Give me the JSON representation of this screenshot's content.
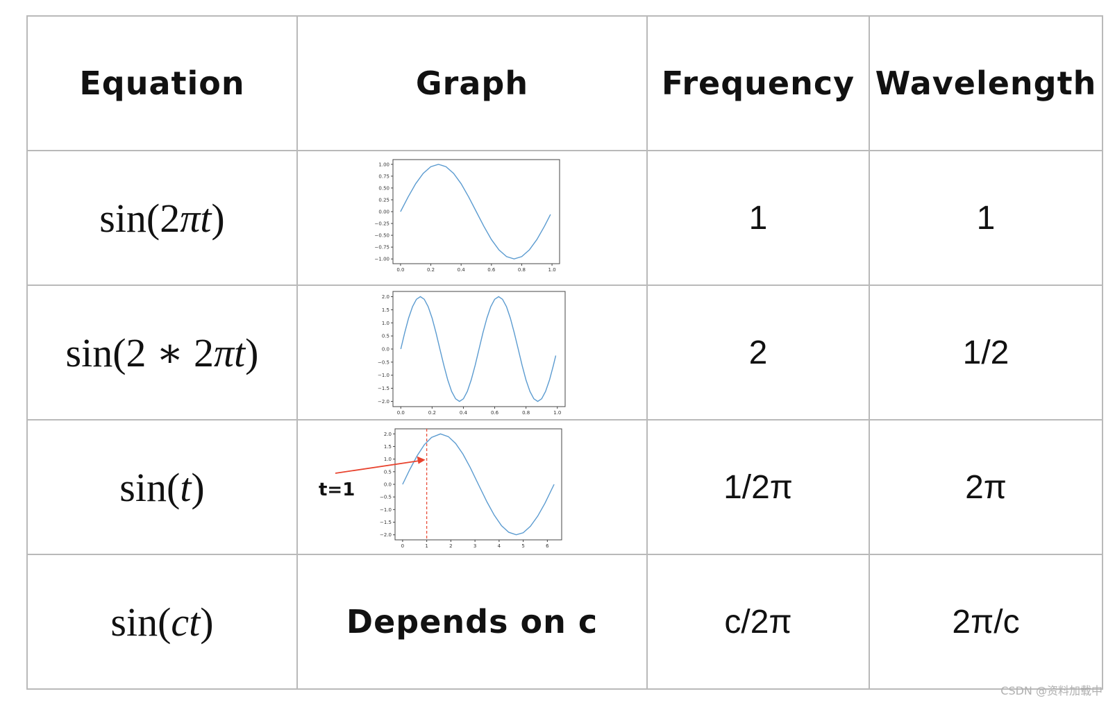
{
  "headers": {
    "equation": "Equation",
    "graph": "Graph",
    "frequency": "Frequency",
    "wavelength": "Wavelength"
  },
  "rows": [
    {
      "eq_pre": "sin(2",
      "eq_mid": "πt",
      "eq_post": ")",
      "frequency": "1",
      "wavelength": "1"
    },
    {
      "eq_pre": "sin(2 ∗ 2",
      "eq_mid": "πt",
      "eq_post": ")",
      "frequency": "2",
      "wavelength": "1/2"
    },
    {
      "eq_pre": "sin(",
      "eq_mid": "t",
      "eq_post": ")",
      "frequency": "1/2π",
      "wavelength": "2π"
    },
    {
      "eq_pre": "sin(",
      "eq_mid": "ct",
      "eq_post": ")",
      "frequency": "c/2π",
      "wavelength": "2π/c",
      "graph_text": "Depends on c"
    }
  ],
  "annotation": {
    "label": "t=1",
    "arrow_color": "#e8432e",
    "marker_x": 1
  },
  "line_color": "#5b9bd0",
  "watermark": "CSDN @资料加载中",
  "chart_data": [
    {
      "type": "line",
      "title": "",
      "series": [
        {
          "x": [
            0,
            0.05,
            0.1,
            0.15,
            0.2,
            0.25,
            0.3,
            0.35,
            0.4,
            0.45,
            0.5,
            0.55,
            0.6,
            0.65,
            0.7,
            0.75,
            0.8,
            0.85,
            0.9,
            0.95,
            0.99
          ],
          "y": [
            0,
            0.31,
            0.59,
            0.81,
            0.95,
            1.0,
            0.95,
            0.81,
            0.59,
            0.31,
            0,
            -0.31,
            -0.59,
            -0.81,
            -0.95,
            -1.0,
            -0.95,
            -0.81,
            -0.59,
            -0.31,
            -0.06
          ]
        }
      ],
      "xlim": [
        0,
        1.0
      ],
      "ylim": [
        -1.0,
        1.0
      ],
      "xticks": [
        "0.0",
        "0.2",
        "0.4",
        "0.6",
        "0.8",
        "1.0"
      ],
      "yticks": [
        "1.00",
        "0.75",
        "0.50",
        "0.25",
        "0.00",
        "−0.25",
        "−0.50",
        "−0.75",
        "−1.00"
      ],
      "grid": false
    },
    {
      "type": "line",
      "title": "",
      "series": [
        {
          "x": [
            0,
            0.025,
            0.05,
            0.075,
            0.1,
            0.125,
            0.15,
            0.175,
            0.2,
            0.225,
            0.25,
            0.275,
            0.3,
            0.325,
            0.35,
            0.375,
            0.4,
            0.425,
            0.45,
            0.475,
            0.5,
            0.525,
            0.55,
            0.575,
            0.6,
            0.625,
            0.65,
            0.675,
            0.7,
            0.725,
            0.75,
            0.775,
            0.8,
            0.825,
            0.85,
            0.875,
            0.9,
            0.925,
            0.95,
            0.975,
            0.99
          ],
          "y": [
            0,
            0.62,
            1.18,
            1.62,
            1.9,
            2.0,
            1.9,
            1.62,
            1.18,
            0.62,
            0,
            -0.62,
            -1.18,
            -1.62,
            -1.9,
            -2.0,
            -1.9,
            -1.62,
            -1.18,
            -0.62,
            0,
            0.62,
            1.18,
            1.62,
            1.9,
            2.0,
            1.9,
            1.62,
            1.18,
            0.62,
            0,
            -0.62,
            -1.18,
            -1.62,
            -1.9,
            -2.0,
            -1.9,
            -1.62,
            -1.18,
            -0.62,
            -0.25
          ]
        }
      ],
      "xlim": [
        0,
        1.0
      ],
      "ylim": [
        -2.0,
        2.0
      ],
      "xticks": [
        "0.0",
        "0.2",
        "0.4",
        "0.6",
        "0.8",
        "1.0"
      ],
      "yticks": [
        "2.0",
        "1.5",
        "1.0",
        "0.5",
        "0.0",
        "−0.5",
        "−1.0",
        "−1.5",
        "−2.0"
      ],
      "grid": false
    },
    {
      "type": "line",
      "title": "",
      "series": [
        {
          "x": [
            0,
            0.3,
            0.6,
            0.9,
            1.2,
            1.57,
            1.9,
            2.2,
            2.5,
            2.8,
            3.14,
            3.5,
            3.8,
            4.1,
            4.4,
            4.71,
            5.0,
            5.3,
            5.6,
            5.9,
            6.28
          ],
          "y": [
            0,
            0.59,
            1.13,
            1.57,
            1.86,
            2.0,
            1.89,
            1.62,
            1.2,
            0.67,
            0,
            -0.7,
            -1.22,
            -1.64,
            -1.9,
            -2.0,
            -1.92,
            -1.66,
            -1.26,
            -0.75,
            0
          ]
        }
      ],
      "xlim": [
        0,
        6.28
      ],
      "ylim": [
        -2.0,
        2.0
      ],
      "xticks": [
        "0",
        "1",
        "2",
        "3",
        "4",
        "5",
        "6"
      ],
      "yticks": [
        "2.0",
        "1.5",
        "1.0",
        "0.5",
        "0.0",
        "−0.5",
        "−1.0",
        "−1.5",
        "−2.0"
      ],
      "annotations": [
        "t=1"
      ],
      "grid": false
    }
  ]
}
